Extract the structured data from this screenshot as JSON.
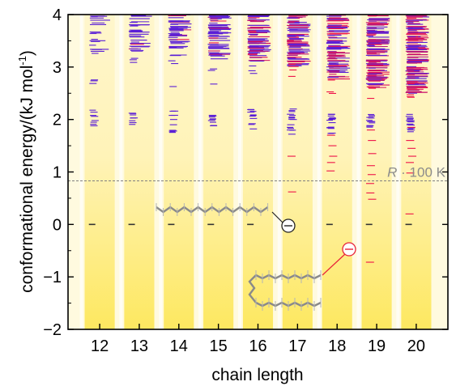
{
  "chart_data": {
    "type": "scatter",
    "xlabel": "chain length",
    "ylabel": "conformational energy/(kJ mol",
    "ylabel_sup": "-1",
    "ylabel_close": ")",
    "categories": [
      "12",
      "13",
      "14",
      "15",
      "16",
      "17",
      "18",
      "19",
      "20"
    ],
    "xlim": [
      11.2,
      20.8
    ],
    "ylim": [
      -2,
      4
    ],
    "yticks": [
      -2,
      -1,
      0,
      1,
      2,
      3,
      4
    ],
    "grid": false,
    "legend": "none",
    "colors": {
      "background": "#fffadf",
      "stripe_light": "#fff6cc",
      "stripe_dark": "#fde860",
      "stripe_gap": "#fffdf3",
      "minimum": "#333333",
      "series_low": "#5a1fd6",
      "series_high": "#ee1148",
      "reference_line": "#7f7f7f",
      "callout_red": "#e8233a"
    },
    "reference_line": {
      "y": 0.83,
      "label_symbol": "R",
      "label_rest": " · 100 K"
    },
    "callouts": [
      {
        "symbol": "⊖",
        "target": "extended conformer (E = 0)",
        "color": "#222222"
      },
      {
        "symbol": "⊖",
        "target": "hairpin conformer",
        "color": "#e8233a"
      }
    ],
    "series": [
      {
        "values_start": [
          2.14,
          2.06,
          1.98,
          1.88
        ],
        "minimum": 0.0,
        "dense_from": 3.25,
        "cluster": [
          2.2,
          1.8
        ]
      },
      {
        "values_start": [
          2.12,
          2.03,
          1.94
        ],
        "minimum": 0.0,
        "dense_from": 3.3,
        "cluster": [
          2.15,
          1.9
        ]
      },
      {
        "values_start": [
          2.16,
          2.08,
          2.0,
          1.9,
          1.78
        ],
        "minimum": 0.0,
        "dense_from": 3.2,
        "cluster": [
          2.2,
          1.75
        ]
      },
      {
        "values_start": [
          2.08,
          1.98,
          1.88
        ],
        "minimum": 0.0,
        "dense_from": 3.15,
        "cluster": [
          2.1,
          1.85
        ]
      },
      {
        "values_start": [
          2.14,
          2.02,
          1.92,
          1.82
        ],
        "minimum": 0.0,
        "dense_from": 3.1,
        "cluster": [
          2.2,
          1.8
        ]
      },
      {
        "values_start": [
          2.2,
          2.1,
          2.0,
          1.9,
          1.8,
          1.72
        ],
        "minimum": 0.0,
        "dense_from": 3.0,
        "cluster": [
          2.2,
          1.7
        ],
        "sparse": [
          1.3,
          0.62
        ]
      },
      {
        "values_start": [
          2.1,
          2.02,
          1.94,
          1.84,
          1.74
        ],
        "minimum": 0.0,
        "dense_from": 2.75,
        "cluster": [
          2.15,
          1.7
        ],
        "sparse": [
          1.7,
          1.5,
          1.3,
          1.18,
          1.02
        ]
      },
      {
        "values_start": [
          2.04,
          1.96,
          1.88
        ],
        "minimum": 0.0,
        "dense_from": 2.6,
        "cluster": [
          2.1,
          1.85
        ],
        "sparse": [
          1.8,
          1.6,
          1.35,
          1.12,
          0.95,
          0.78,
          0.6,
          0.48,
          -0.72
        ]
      },
      {
        "values_start": [
          2.06,
          1.98,
          1.9,
          1.8
        ],
        "minimum": 0.0,
        "dense_from": 2.5,
        "cluster": [
          2.1,
          1.75
        ],
        "sparse": [
          1.85,
          1.6,
          1.45,
          1.3,
          1.18,
          0.98,
          0.2
        ]
      }
    ]
  }
}
